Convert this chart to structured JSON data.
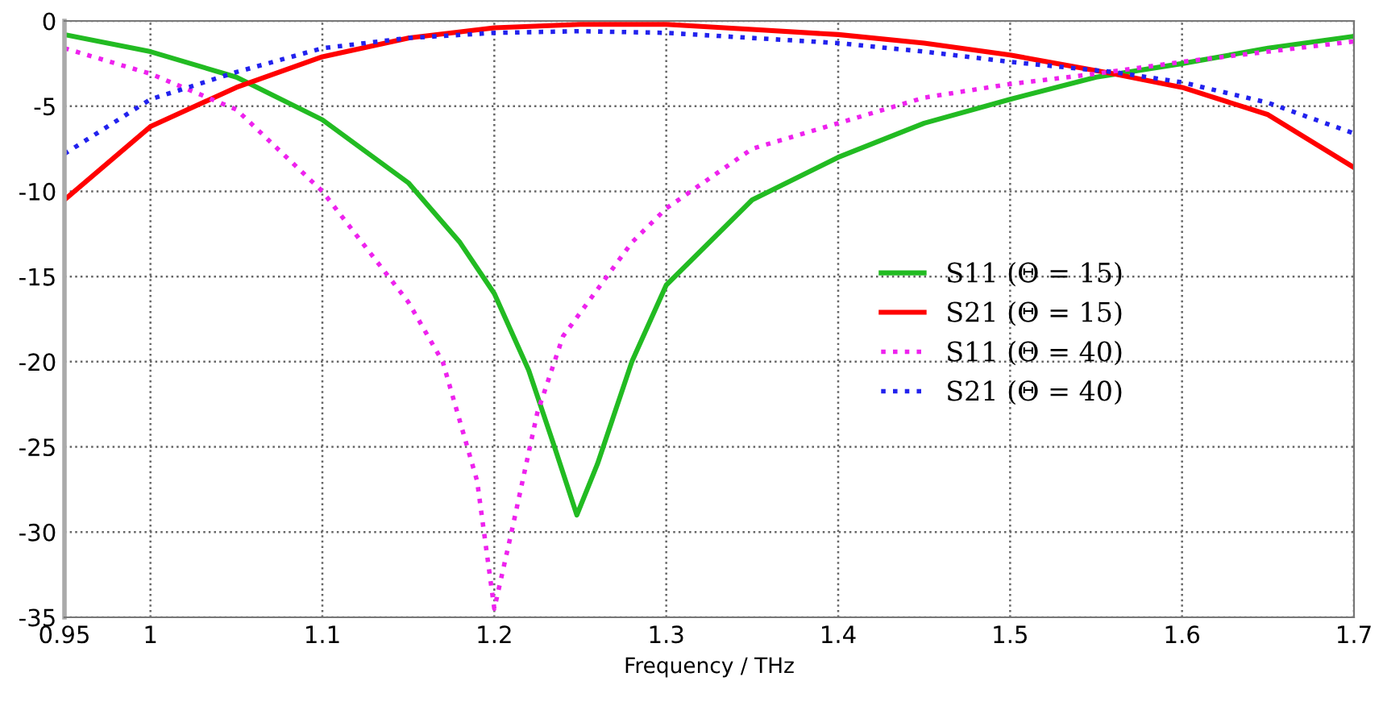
{
  "chart_data": {
    "type": "line",
    "xlabel": "Frequency / THz",
    "xlim": [
      0.95,
      1.7
    ],
    "xticks": [
      0.95,
      1,
      1.1,
      1.2,
      1.3,
      1.4,
      1.5,
      1.6,
      1.7
    ],
    "ylim": [
      -35,
      0
    ],
    "yticks": [
      -35,
      -30,
      -25,
      -20,
      -15,
      -10,
      -5,
      0
    ],
    "grid": true,
    "legend": "center right",
    "series": [
      {
        "name": "S11 (Θ = 15)",
        "color": "#22bb22",
        "line_style": "solid",
        "x": [
          0.95,
          1.0,
          1.05,
          1.1,
          1.15,
          1.18,
          1.2,
          1.22,
          1.235,
          1.248,
          1.26,
          1.28,
          1.3,
          1.35,
          1.4,
          1.45,
          1.5,
          1.55,
          1.6,
          1.65,
          1.7
        ],
        "values": [
          -0.8,
          -1.8,
          -3.3,
          -5.8,
          -9.5,
          -13,
          -16,
          -20.5,
          -25,
          -29,
          -26,
          -20,
          -15.5,
          -10.5,
          -8,
          -6,
          -4.6,
          -3.3,
          -2.5,
          -1.6,
          -0.9
        ]
      },
      {
        "name": "S21 (Θ = 15)",
        "color": "#ff0000",
        "line_style": "solid",
        "x": [
          0.95,
          1.0,
          1.05,
          1.1,
          1.15,
          1.2,
          1.25,
          1.3,
          1.35,
          1.4,
          1.45,
          1.5,
          1.56,
          1.6,
          1.65,
          1.7
        ],
        "values": [
          -10.5,
          -6.2,
          -3.9,
          -2.1,
          -1.0,
          -0.4,
          -0.2,
          -0.2,
          -0.5,
          -0.8,
          -1.3,
          -2.0,
          -3.1,
          -3.9,
          -5.5,
          -8.6
        ]
      },
      {
        "name": "S11 (Θ = 40)",
        "color": "#ee22ee",
        "line_style": "dotted",
        "x": [
          0.95,
          1.0,
          1.05,
          1.1,
          1.15,
          1.17,
          1.19,
          1.2,
          1.21,
          1.225,
          1.24,
          1.28,
          1.3,
          1.35,
          1.4,
          1.45,
          1.5,
          1.55,
          1.6,
          1.65,
          1.7
        ],
        "values": [
          -1.6,
          -3.1,
          -5.2,
          -10,
          -16.5,
          -20,
          -27,
          -34.5,
          -30,
          -23,
          -18.5,
          -13,
          -11,
          -7.5,
          -6,
          -4.5,
          -3.7,
          -3.1,
          -2.4,
          -1.8,
          -1.2
        ]
      },
      {
        "name": "S21 (Θ = 40)",
        "color": "#2222ee",
        "line_style": "dotted",
        "x": [
          0.95,
          1.0,
          1.05,
          1.1,
          1.15,
          1.2,
          1.25,
          1.3,
          1.35,
          1.4,
          1.45,
          1.5,
          1.56,
          1.6,
          1.65,
          1.7
        ],
        "values": [
          -7.8,
          -4.6,
          -3.0,
          -1.6,
          -1.0,
          -0.7,
          -0.6,
          -0.7,
          -1.0,
          -1.3,
          -1.8,
          -2.4,
          -3.0,
          -3.6,
          -4.8,
          -6.6
        ]
      }
    ]
  }
}
